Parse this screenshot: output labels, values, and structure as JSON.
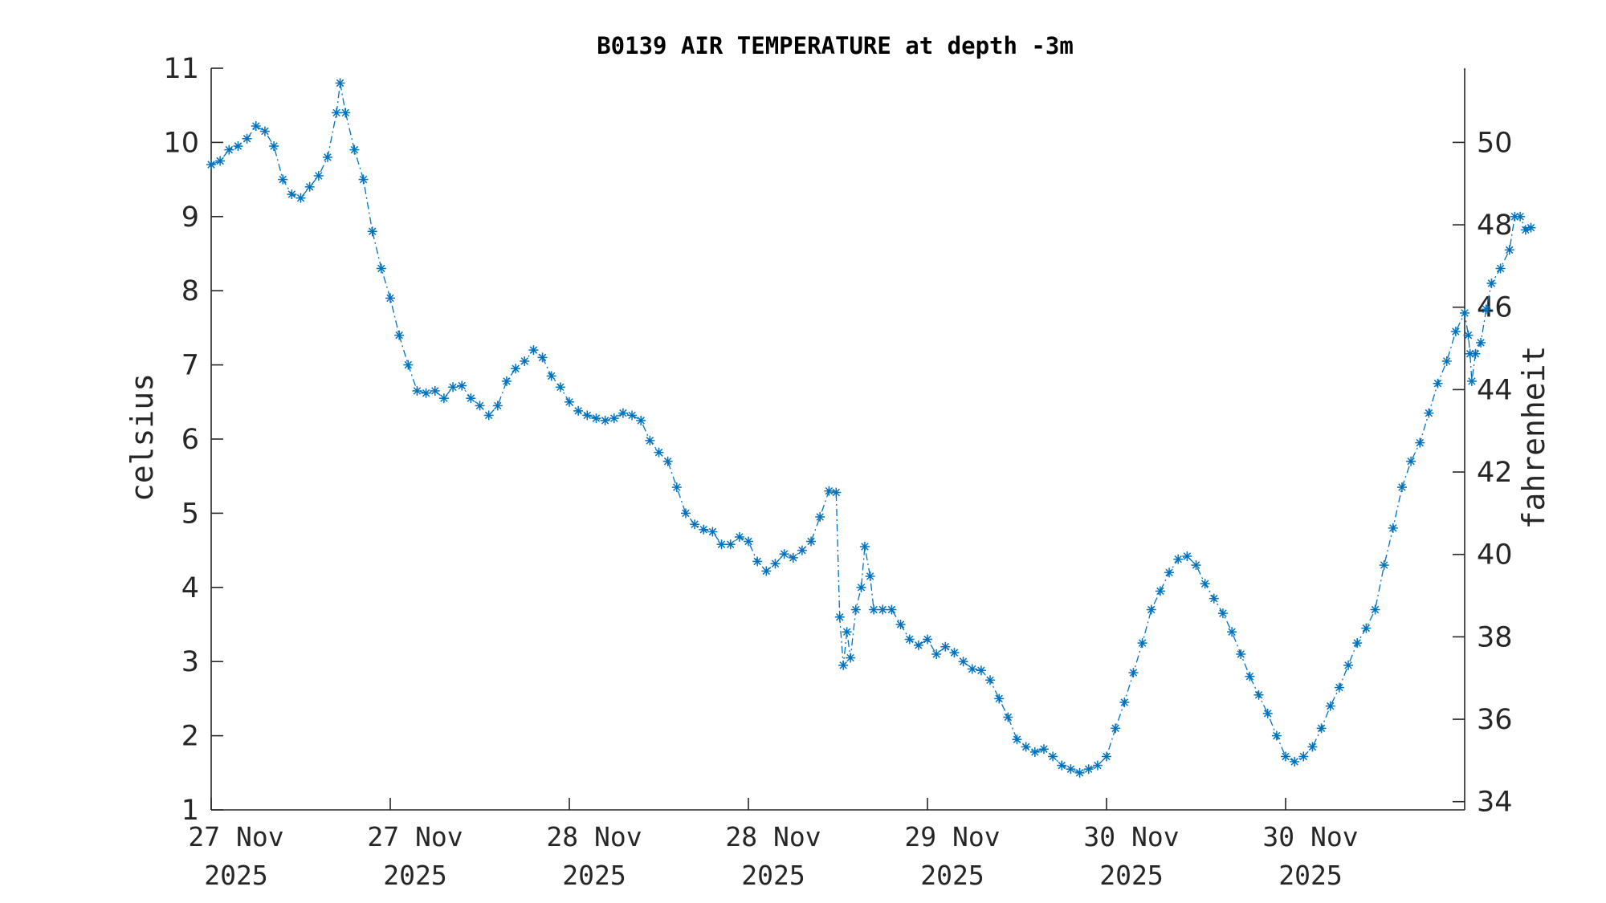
{
  "chart_data": {
    "type": "line",
    "title": "B0139 AIR TEMPERATURE at depth -3m",
    "ylabel": "celsius",
    "ylabel_right": "fahrenheit",
    "ylim": [
      1,
      11
    ],
    "yticks": [
      1,
      2,
      3,
      4,
      5,
      6,
      7,
      8,
      9,
      10,
      11
    ],
    "ylim_right": [
      33.8,
      51.8
    ],
    "yticks_right": [
      34,
      36,
      38,
      40,
      42,
      44,
      46,
      48,
      50
    ],
    "xlim": [
      0,
      3.5
    ],
    "xticks": [
      {
        "x": 0.0,
        "line1": "27 Nov",
        "line2": "2025"
      },
      {
        "x": 0.5,
        "line1": "27 Nov",
        "line2": "2025"
      },
      {
        "x": 1.0,
        "line1": "28 Nov",
        "line2": "2025"
      },
      {
        "x": 1.5,
        "line1": "28 Nov",
        "line2": "2025"
      },
      {
        "x": 2.0,
        "line1": "29 Nov",
        "line2": "2025"
      },
      {
        "x": 2.5,
        "line1": "30 Nov",
        "line2": "2025"
      },
      {
        "x": 3.0,
        "line1": "30 Nov",
        "line2": "2025"
      }
    ],
    "x_unit": "days since 27 Nov 2025 00:00",
    "grid": false,
    "series": [
      {
        "marker": "asterisk",
        "line_style": "dash-dot",
        "color": "#0072BD",
        "points": [
          [
            0.0,
            9.7
          ],
          [
            0.025,
            9.75
          ],
          [
            0.05,
            9.9
          ],
          [
            0.075,
            9.95
          ],
          [
            0.1,
            10.05
          ],
          [
            0.125,
            10.22
          ],
          [
            0.15,
            10.15
          ],
          [
            0.175,
            9.95
          ],
          [
            0.2,
            9.5
          ],
          [
            0.225,
            9.3
          ],
          [
            0.25,
            9.25
          ],
          [
            0.275,
            9.4
          ],
          [
            0.3,
            9.55
          ],
          [
            0.325,
            9.8
          ],
          [
            0.35,
            10.4
          ],
          [
            0.36,
            10.8
          ],
          [
            0.375,
            10.4
          ],
          [
            0.4,
            9.9
          ],
          [
            0.425,
            9.5
          ],
          [
            0.45,
            8.8
          ],
          [
            0.475,
            8.3
          ],
          [
            0.5,
            7.9
          ],
          [
            0.525,
            7.4
          ],
          [
            0.55,
            7.0
          ],
          [
            0.575,
            6.65
          ],
          [
            0.6,
            6.62
          ],
          [
            0.625,
            6.65
          ],
          [
            0.65,
            6.55
          ],
          [
            0.675,
            6.7
          ],
          [
            0.7,
            6.72
          ],
          [
            0.725,
            6.55
          ],
          [
            0.75,
            6.45
          ],
          [
            0.775,
            6.32
          ],
          [
            0.8,
            6.45
          ],
          [
            0.825,
            6.78
          ],
          [
            0.85,
            6.95
          ],
          [
            0.875,
            7.05
          ],
          [
            0.9,
            7.2
          ],
          [
            0.925,
            7.1
          ],
          [
            0.95,
            6.85
          ],
          [
            0.975,
            6.7
          ],
          [
            1.0,
            6.5
          ],
          [
            1.025,
            6.38
          ],
          [
            1.05,
            6.32
          ],
          [
            1.075,
            6.28
          ],
          [
            1.1,
            6.25
          ],
          [
            1.125,
            6.28
          ],
          [
            1.15,
            6.35
          ],
          [
            1.175,
            6.32
          ],
          [
            1.2,
            6.25
          ],
          [
            1.225,
            5.98
          ],
          [
            1.25,
            5.82
          ],
          [
            1.275,
            5.7
          ],
          [
            1.3,
            5.35
          ],
          [
            1.325,
            5.0
          ],
          [
            1.35,
            4.85
          ],
          [
            1.375,
            4.78
          ],
          [
            1.4,
            4.75
          ],
          [
            1.425,
            4.58
          ],
          [
            1.45,
            4.58
          ],
          [
            1.475,
            4.68
          ],
          [
            1.5,
            4.62
          ],
          [
            1.525,
            4.35
          ],
          [
            1.55,
            4.22
          ],
          [
            1.575,
            4.32
          ],
          [
            1.6,
            4.45
          ],
          [
            1.625,
            4.4
          ],
          [
            1.65,
            4.5
          ],
          [
            1.675,
            4.62
          ],
          [
            1.7,
            4.95
          ],
          [
            1.725,
            5.3
          ],
          [
            1.745,
            5.28
          ],
          [
            1.755,
            3.6
          ],
          [
            1.765,
            2.95
          ],
          [
            1.775,
            3.4
          ],
          [
            1.785,
            3.05
          ],
          [
            1.8,
            3.7
          ],
          [
            1.815,
            4.0
          ],
          [
            1.825,
            4.55
          ],
          [
            1.84,
            4.15
          ],
          [
            1.85,
            3.7
          ],
          [
            1.875,
            3.7
          ],
          [
            1.9,
            3.7
          ],
          [
            1.925,
            3.5
          ],
          [
            1.95,
            3.3
          ],
          [
            1.975,
            3.22
          ],
          [
            2.0,
            3.3
          ],
          [
            2.025,
            3.1
          ],
          [
            2.05,
            3.2
          ],
          [
            2.075,
            3.12
          ],
          [
            2.1,
            3.0
          ],
          [
            2.125,
            2.9
          ],
          [
            2.15,
            2.88
          ],
          [
            2.175,
            2.75
          ],
          [
            2.2,
            2.5
          ],
          [
            2.225,
            2.25
          ],
          [
            2.25,
            1.95
          ],
          [
            2.275,
            1.85
          ],
          [
            2.3,
            1.78
          ],
          [
            2.325,
            1.82
          ],
          [
            2.35,
            1.72
          ],
          [
            2.375,
            1.6
          ],
          [
            2.4,
            1.55
          ],
          [
            2.425,
            1.5
          ],
          [
            2.45,
            1.55
          ],
          [
            2.475,
            1.6
          ],
          [
            2.5,
            1.72
          ],
          [
            2.525,
            2.1
          ],
          [
            2.55,
            2.45
          ],
          [
            2.575,
            2.85
          ],
          [
            2.6,
            3.25
          ],
          [
            2.625,
            3.7
          ],
          [
            2.65,
            3.95
          ],
          [
            2.675,
            4.2
          ],
          [
            2.7,
            4.38
          ],
          [
            2.725,
            4.42
          ],
          [
            2.75,
            4.3
          ],
          [
            2.775,
            4.05
          ],
          [
            2.8,
            3.85
          ],
          [
            2.825,
            3.65
          ],
          [
            2.85,
            3.4
          ],
          [
            2.875,
            3.1
          ],
          [
            2.9,
            2.8
          ],
          [
            2.925,
            2.55
          ],
          [
            2.95,
            2.3
          ],
          [
            2.975,
            2.0
          ],
          [
            3.0,
            1.72
          ],
          [
            3.025,
            1.65
          ],
          [
            3.05,
            1.72
          ],
          [
            3.075,
            1.85
          ],
          [
            3.1,
            2.1
          ],
          [
            3.125,
            2.4
          ],
          [
            3.15,
            2.65
          ],
          [
            3.175,
            2.95
          ],
          [
            3.2,
            3.25
          ],
          [
            3.225,
            3.45
          ],
          [
            3.25,
            3.7
          ],
          [
            3.275,
            4.3
          ],
          [
            3.3,
            4.8
          ],
          [
            3.325,
            5.35
          ],
          [
            3.35,
            5.7
          ],
          [
            3.375,
            5.95
          ],
          [
            3.4,
            6.35
          ],
          [
            3.425,
            6.75
          ],
          [
            3.45,
            7.05
          ],
          [
            3.475,
            7.45
          ],
          [
            3.5,
            7.7
          ],
          [
            3.51,
            7.4
          ],
          [
            3.515,
            7.15
          ],
          [
            3.52,
            6.78
          ],
          [
            3.53,
            7.15
          ],
          [
            3.545,
            7.3
          ],
          [
            3.56,
            7.75
          ],
          [
            3.575,
            8.1
          ],
          [
            3.6,
            8.3
          ],
          [
            3.625,
            8.55
          ],
          [
            3.64,
            9.0
          ],
          [
            3.655,
            9.0
          ],
          [
            3.67,
            8.82
          ],
          [
            3.685,
            8.85
          ]
        ]
      }
    ]
  }
}
